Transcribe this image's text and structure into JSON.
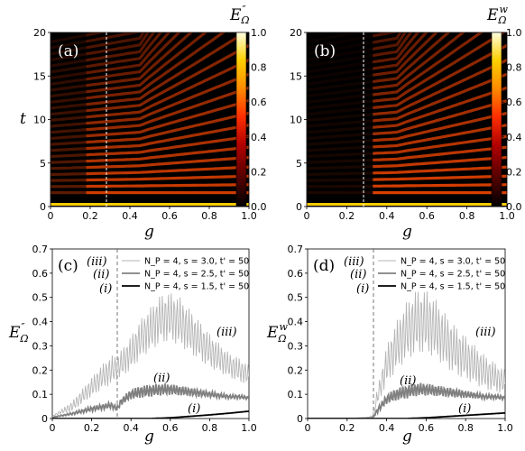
{
  "chart_data": [
    {
      "panel_label": "(a)",
      "type": "heatmap",
      "xlabel": "g",
      "ylabel": "t",
      "xlim": [
        0,
        1
      ],
      "ylim": [
        0,
        20
      ],
      "xticks": [
        "0",
        "0.2",
        "0.4",
        "0.6",
        "0.8",
        "1.0"
      ],
      "yticks": [
        "0",
        "5",
        "10",
        "15",
        "20"
      ],
      "colorbar_label": "E''_Ω",
      "colorbar_ticks": [
        "0.0",
        "0.2",
        "0.4",
        "0.6",
        "0.8",
        "1.0"
      ],
      "colormap": [
        "#000000",
        "#5a0000",
        "#b00000",
        "#ff3000",
        "#ff8c00",
        "#ffd000",
        "#ffffe0"
      ],
      "critical_g": 0.33
    },
    {
      "panel_label": "(b)",
      "type": "heatmap",
      "xlabel": "g",
      "ylabel": "",
      "xlim": [
        0,
        1
      ],
      "ylim": [
        0,
        20
      ],
      "xticks": [
        "0",
        "0.2",
        "0.4",
        "0.6",
        "0.8",
        "1.0"
      ],
      "yticks": [
        "0",
        "5",
        "10",
        "15",
        "20"
      ],
      "colorbar_label": "E^w_Ω",
      "colorbar_ticks": [
        "0.0",
        "0.2",
        "0.4",
        "0.6",
        "0.8",
        "1.0"
      ],
      "colormap": [
        "#000000",
        "#5a0000",
        "#b00000",
        "#ff3000",
        "#ff8c00",
        "#ffd000",
        "#ffffe0"
      ],
      "critical_g": 0.33
    },
    {
      "panel_label": "(c)",
      "type": "line",
      "xlabel": "g",
      "ylabel": "E''_Ω",
      "xlim": [
        0,
        1
      ],
      "ylim": [
        0,
        0.7
      ],
      "xticks": [
        "0",
        "0.2",
        "0.4",
        "0.6",
        "0.8",
        "1.0"
      ],
      "yticks": [
        "0",
        "0.1",
        "0.2",
        "0.3",
        "0.4",
        "0.5",
        "0.6",
        "0.7"
      ],
      "critical_g": 0.33,
      "annotations": [
        "(iii)",
        "(ii)",
        "(i)",
        "(iii)",
        "(ii)",
        "(i)"
      ],
      "series": [
        {
          "name": "N_P = 4, s = 3.0, t' = 50",
          "color": "#b4b4b4",
          "width": 0.9,
          "x": [
            0,
            0.1,
            0.15,
            0.2,
            0.25,
            0.3,
            0.33,
            0.4,
            0.45,
            0.5,
            0.55,
            0.6,
            0.65,
            0.7,
            0.75,
            0.8,
            0.85,
            0.9,
            0.95,
            1.0
          ],
          "y": [
            0.01,
            0.05,
            0.09,
            0.13,
            0.17,
            0.2,
            0.21,
            0.27,
            0.33,
            0.37,
            0.41,
            0.42,
            0.4,
            0.36,
            0.32,
            0.28,
            0.25,
            0.22,
            0.2,
            0.18
          ],
          "osc": [
            0,
            0.02,
            0.03,
            0.04,
            0.05,
            0.06,
            0.05,
            0.07,
            0.08,
            0.09,
            0.1,
            0.1,
            0.1,
            0.09,
            0.08,
            0.07,
            0.06,
            0.05,
            0.05,
            0.04
          ]
        },
        {
          "name": "N_P = 4, s = 2.5, t' = 50",
          "color": "#808080",
          "width": 1.8,
          "x": [
            0,
            0.1,
            0.2,
            0.3,
            0.33,
            0.35,
            0.4,
            0.45,
            0.5,
            0.55,
            0.6,
            0.65,
            0.7,
            0.75,
            0.8,
            0.85,
            0.9,
            0.95,
            1.0
          ],
          "y": [
            0.005,
            0.02,
            0.04,
            0.055,
            0.04,
            0.07,
            0.1,
            0.11,
            0.115,
            0.12,
            0.12,
            0.115,
            0.11,
            0.105,
            0.1,
            0.095,
            0.09,
            0.09,
            0.085
          ],
          "osc": [
            0,
            0.005,
            0.01,
            0.012,
            0.01,
            0.015,
            0.02,
            0.025,
            0.025,
            0.025,
            0.022,
            0.02,
            0.018,
            0.015,
            0.012,
            0.01,
            0.008,
            0.008,
            0.006
          ]
        },
        {
          "name": "N_P = 4, s = 1.5, t' = 50",
          "color": "#000000",
          "width": 1.8,
          "x": [
            0,
            0.5,
            0.6,
            0.7,
            0.8,
            0.9,
            1.0
          ],
          "y": [
            0,
            0,
            0.003,
            0.009,
            0.015,
            0.022,
            0.03
          ],
          "osc": [
            0,
            0,
            0,
            0,
            0,
            0,
            0
          ]
        }
      ]
    },
    {
      "panel_label": "(d)",
      "type": "line",
      "xlabel": "g",
      "ylabel": "E^w_Ω",
      "xlim": [
        0,
        1
      ],
      "ylim": [
        0,
        0.7
      ],
      "xticks": [
        "0",
        "0.2",
        "0.4",
        "0.6",
        "0.8",
        "1.0"
      ],
      "yticks": [
        "0",
        "0.1",
        "0.2",
        "0.3",
        "0.4",
        "0.5",
        "0.6",
        "0.7"
      ],
      "critical_g": 0.33,
      "annotations": [
        "(iii)",
        "(ii)",
        "(i)",
        "(iii)",
        "(ii)",
        "(i)"
      ],
      "series": [
        {
          "name": "N_P = 4, s = 3.0, t' = 50",
          "color": "#b4b4b4",
          "width": 0.9,
          "x": [
            0,
            0.2,
            0.3,
            0.33,
            0.35,
            0.4,
            0.45,
            0.5,
            0.55,
            0.6,
            0.65,
            0.7,
            0.75,
            0.8,
            0.85,
            0.9,
            0.95,
            1.0
          ],
          "y": [
            0,
            0,
            0.005,
            0.01,
            0.08,
            0.22,
            0.3,
            0.36,
            0.4,
            0.4,
            0.37,
            0.32,
            0.28,
            0.25,
            0.22,
            0.19,
            0.17,
            0.15
          ],
          "osc": [
            0,
            0,
            0,
            0.005,
            0.03,
            0.08,
            0.1,
            0.12,
            0.13,
            0.13,
            0.12,
            0.11,
            0.1,
            0.09,
            0.08,
            0.07,
            0.06,
            0.05
          ]
        },
        {
          "name": "N_P = 4, s = 2.5, t' = 50",
          "color": "#808080",
          "width": 1.8,
          "x": [
            0,
            0.3,
            0.33,
            0.35,
            0.4,
            0.45,
            0.5,
            0.55,
            0.6,
            0.65,
            0.7,
            0.75,
            0.8,
            0.85,
            0.9,
            0.95,
            1.0
          ],
          "y": [
            0,
            0,
            0.003,
            0.03,
            0.08,
            0.1,
            0.11,
            0.12,
            0.12,
            0.115,
            0.11,
            0.105,
            0.1,
            0.095,
            0.09,
            0.09,
            0.085
          ],
          "osc": [
            0,
            0,
            0,
            0.01,
            0.02,
            0.025,
            0.028,
            0.028,
            0.025,
            0.022,
            0.02,
            0.018,
            0.015,
            0.012,
            0.01,
            0.009,
            0.008
          ]
        },
        {
          "name": "N_P = 4, s = 1.5, t' = 50",
          "color": "#000000",
          "width": 1.8,
          "x": [
            0,
            0.5,
            0.6,
            0.7,
            0.8,
            0.9,
            1.0
          ],
          "y": [
            0,
            0,
            0.003,
            0.008,
            0.013,
            0.018,
            0.023
          ],
          "osc": [
            0,
            0,
            0,
            0,
            0,
            0,
            0
          ]
        }
      ]
    }
  ]
}
